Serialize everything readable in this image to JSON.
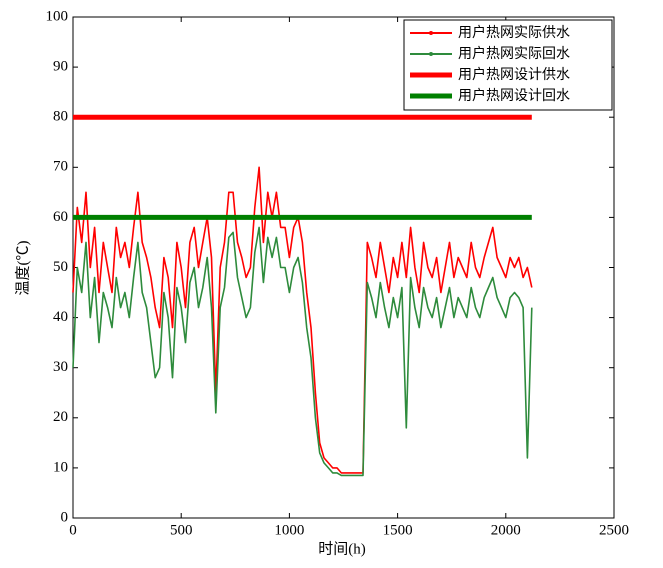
{
  "chart_data": {
    "type": "line",
    "xlabel": "时间(h)",
    "ylabel": "温度(℃)",
    "xlim": [
      0,
      2500
    ],
    "xticks": [
      0,
      500,
      1000,
      1500,
      2000,
      2500
    ],
    "ylim": [
      0,
      100
    ],
    "yticks": [
      0,
      10,
      20,
      30,
      40,
      50,
      60,
      70,
      80,
      90,
      100
    ],
    "legend": "upper right",
    "x": [
      0,
      20,
      40,
      60,
      80,
      100,
      120,
      140,
      160,
      180,
      200,
      220,
      240,
      260,
      280,
      300,
      320,
      340,
      360,
      380,
      400,
      420,
      440,
      460,
      480,
      500,
      520,
      540,
      560,
      580,
      600,
      620,
      640,
      660,
      680,
      700,
      720,
      740,
      760,
      780,
      800,
      820,
      840,
      860,
      880,
      900,
      920,
      940,
      960,
      980,
      1000,
      1020,
      1040,
      1060,
      1080,
      1100,
      1120,
      1140,
      1160,
      1180,
      1200,
      1220,
      1240,
      1260,
      1280,
      1300,
      1320,
      1340,
      1360,
      1380,
      1400,
      1420,
      1440,
      1460,
      1480,
      1500,
      1520,
      1540,
      1560,
      1580,
      1600,
      1620,
      1640,
      1660,
      1680,
      1700,
      1720,
      1740,
      1760,
      1780,
      1800,
      1820,
      1840,
      1860,
      1880,
      1900,
      1920,
      1940,
      1960,
      1980,
      2000,
      2020,
      2040,
      2060,
      2080,
      2100,
      2120
    ],
    "series": [
      {
        "name": "用户热网实际供水",
        "color": "#ff0000",
        "values": [
          45,
          62,
          55,
          65,
          50,
          58,
          45,
          55,
          50,
          45,
          58,
          52,
          55,
          50,
          58,
          65,
          55,
          52,
          48,
          42,
          38,
          52,
          48,
          38,
          55,
          50,
          42,
          55,
          58,
          50,
          55,
          60,
          52,
          25,
          50,
          55,
          65,
          65,
          55,
          52,
          48,
          50,
          62,
          70,
          55,
          65,
          60,
          65,
          58,
          58,
          52,
          58,
          60,
          55,
          45,
          38,
          25,
          15,
          12,
          11,
          10,
          10,
          9,
          9,
          9,
          9,
          9,
          9,
          55,
          52,
          48,
          55,
          50,
          45,
          52,
          48,
          55,
          48,
          58,
          50,
          45,
          55,
          50,
          48,
          52,
          45,
          50,
          55,
          48,
          52,
          50,
          48,
          55,
          50,
          48,
          52,
          55,
          58,
          52,
          50,
          48,
          52,
          50,
          52,
          48,
          50,
          46
        ]
      },
      {
        "name": "用户热网实际回水",
        "color": "#2e8b3c",
        "values": [
          30,
          50,
          45,
          55,
          40,
          48,
          35,
          45,
          42,
          38,
          48,
          42,
          45,
          40,
          48,
          55,
          45,
          42,
          35,
          28,
          30,
          45,
          40,
          28,
          46,
          42,
          35,
          47,
          50,
          42,
          46,
          52,
          42,
          21,
          42,
          46,
          56,
          57,
          48,
          44,
          40,
          42,
          53,
          58,
          47,
          56,
          52,
          56,
          50,
          50,
          45,
          50,
          52,
          47,
          38,
          32,
          20,
          13,
          11,
          10,
          9,
          9,
          8.5,
          8.5,
          8.5,
          8.5,
          8.5,
          8.5,
          47,
          44,
          40,
          47,
          42,
          38,
          44,
          40,
          46,
          18,
          48,
          42,
          38,
          46,
          42,
          40,
          44,
          38,
          42,
          46,
          40,
          44,
          42,
          40,
          46,
          42,
          40,
          44,
          46,
          48,
          44,
          42,
          40,
          44,
          45,
          44,
          42,
          12,
          42
        ]
      },
      {
        "name": "用户热网设计供水",
        "color": "#ff0000",
        "x": [
          0,
          2120
        ],
        "values": [
          80,
          80
        ]
      },
      {
        "name": "用户热网设计回水",
        "color": "#008000",
        "x": [
          0,
          2120
        ],
        "values": [
          60,
          60
        ]
      }
    ]
  }
}
